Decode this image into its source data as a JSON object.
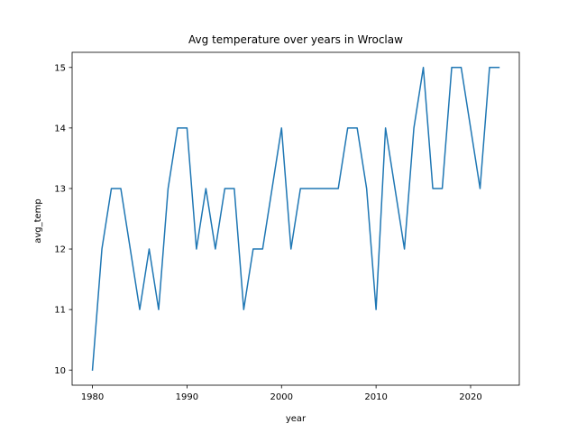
{
  "chart_data": {
    "type": "line",
    "title": "Avg temperature over years in Wroclaw",
    "xlabel": "year",
    "ylabel": "avg_temp",
    "xlim": [
      1977.85,
      2025.15
    ],
    "ylim": [
      9.75,
      15.25
    ],
    "x_ticks": [
      1980,
      1990,
      2000,
      2010,
      2020
    ],
    "y_ticks": [
      10,
      11,
      12,
      13,
      14,
      15
    ],
    "grid": false,
    "line_color": "#1f77b4",
    "series": [
      {
        "x": [
          1980,
          1981,
          1982,
          1983,
          1984,
          1985,
          1986,
          1987,
          1988,
          1989,
          1990,
          1991,
          1992,
          1993,
          1994,
          1995,
          1996,
          1997,
          1998,
          1999,
          2000,
          2001,
          2002,
          2003,
          2004,
          2005,
          2006,
          2007,
          2008,
          2009,
          2010,
          2011,
          2012,
          2013,
          2014,
          2015,
          2016,
          2017,
          2018,
          2019,
          2020,
          2021,
          2022,
          2023
        ],
        "values": [
          10,
          12,
          13,
          13,
          12,
          11,
          12,
          11,
          13,
          14,
          14,
          12,
          13,
          12,
          13,
          13,
          11,
          12,
          12,
          13,
          14,
          12,
          13,
          13,
          13,
          13,
          13,
          14,
          14,
          13,
          11,
          14,
          13,
          12,
          14,
          15,
          13,
          13,
          15,
          15,
          14,
          13,
          15,
          15
        ]
      }
    ]
  }
}
